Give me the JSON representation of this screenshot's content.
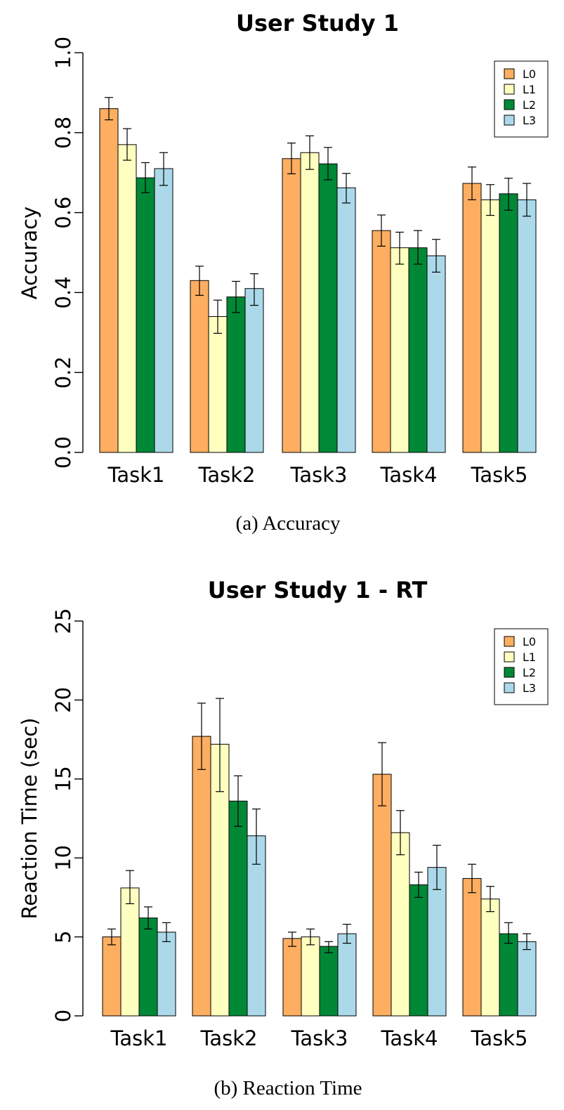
{
  "chart_data": [
    {
      "type": "bar",
      "title": "User  Study 1",
      "ylabel": "Accuracy",
      "xlabel": "",
      "ylim": [
        0,
        1
      ],
      "yticks": [
        "0.0",
        "0.2",
        "0.4",
        "0.6",
        "0.8",
        "1.0"
      ],
      "ytick_values": [
        0,
        0.2,
        0.4,
        0.6,
        0.8,
        1.0
      ],
      "categories": [
        "Task1",
        "Task2",
        "Task3",
        "Task4",
        "Task5"
      ],
      "series": [
        {
          "name": "L0",
          "color": "#FDAE61",
          "values": [
            0.86,
            0.43,
            0.735,
            0.555,
            0.673
          ],
          "err_low": [
            0.832,
            0.393,
            0.697,
            0.516,
            0.632
          ],
          "err_high": [
            0.888,
            0.466,
            0.774,
            0.594,
            0.714
          ]
        },
        {
          "name": "L1",
          "color": "#FFFFBF",
          "values": [
            0.77,
            0.34,
            0.75,
            0.512,
            0.632
          ],
          "err_low": [
            0.731,
            0.298,
            0.708,
            0.471,
            0.593
          ],
          "err_high": [
            0.81,
            0.381,
            0.792,
            0.551,
            0.67
          ]
        },
        {
          "name": "L2",
          "color": "#008837",
          "values": [
            0.687,
            0.389,
            0.722,
            0.512,
            0.647
          ],
          "err_low": [
            0.65,
            0.35,
            0.682,
            0.471,
            0.606
          ],
          "err_high": [
            0.725,
            0.428,
            0.763,
            0.555,
            0.686
          ]
        },
        {
          "name": "L3",
          "color": "#ABD9E9",
          "values": [
            0.71,
            0.41,
            0.662,
            0.492,
            0.632
          ],
          "err_low": [
            0.668,
            0.368,
            0.624,
            0.451,
            0.591
          ],
          "err_high": [
            0.75,
            0.447,
            0.698,
            0.533,
            0.673
          ]
        }
      ],
      "legend": "top-right",
      "grid": false,
      "caption": "(a)  Accuracy"
    },
    {
      "type": "bar",
      "title": "User  Study 1 - RT",
      "ylabel": "Reaction Time (sec)",
      "xlabel": "",
      "ylim": [
        0,
        25
      ],
      "yticks": [
        "0",
        "5",
        "10",
        "15",
        "20",
        "25"
      ],
      "ytick_values": [
        0,
        5,
        10,
        15,
        20,
        25
      ],
      "categories": [
        "Task1",
        "Task2",
        "Task3",
        "Task4",
        "Task5"
      ],
      "series": [
        {
          "name": "L0",
          "color": "#FDAE61",
          "values": [
            5.0,
            17.7,
            4.9,
            15.3,
            8.7
          ],
          "err_low": [
            4.5,
            15.6,
            4.4,
            13.3,
            7.8
          ],
          "err_high": [
            5.5,
            19.8,
            5.3,
            17.3,
            9.6
          ]
        },
        {
          "name": "L1",
          "color": "#FFFFBF",
          "values": [
            8.1,
            17.2,
            5.0,
            11.6,
            7.4
          ],
          "err_low": [
            7.1,
            14.2,
            4.5,
            10.2,
            6.6
          ],
          "err_high": [
            9.2,
            20.1,
            5.5,
            13.0,
            8.2
          ]
        },
        {
          "name": "L2",
          "color": "#008837",
          "values": [
            6.2,
            13.6,
            4.4,
            8.3,
            5.2
          ],
          "err_low": [
            5.5,
            12.0,
            4.0,
            7.5,
            4.6
          ],
          "err_high": [
            6.9,
            15.2,
            4.7,
            9.1,
            5.9
          ]
        },
        {
          "name": "L3",
          "color": "#ABD9E9",
          "values": [
            5.3,
            11.4,
            5.2,
            9.4,
            4.7
          ],
          "err_low": [
            4.7,
            9.6,
            4.6,
            8.0,
            4.2
          ],
          "err_high": [
            5.9,
            13.1,
            5.8,
            10.8,
            5.2
          ]
        }
      ],
      "legend": "top-right",
      "grid": false,
      "caption": "(b)  Reaction Time"
    }
  ]
}
